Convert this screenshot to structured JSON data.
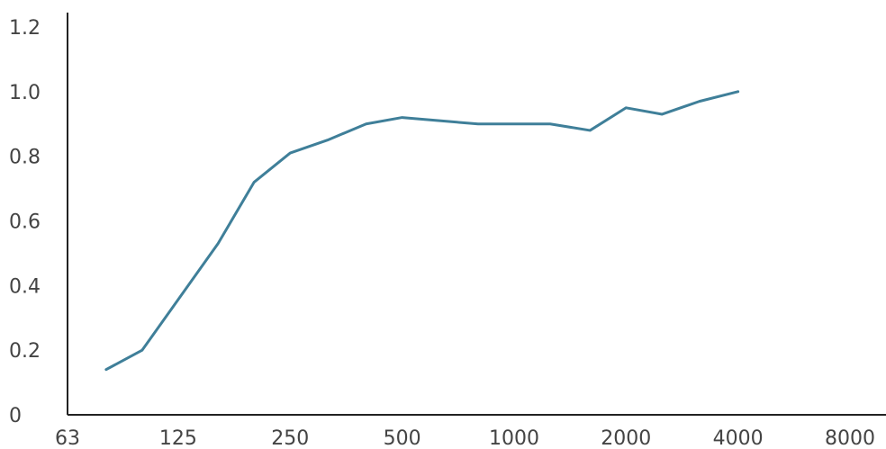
{
  "chart_data": {
    "type": "line",
    "title": "",
    "xlabel": "",
    "ylabel": "",
    "x_scale": "log2",
    "x_ticks": [
      63,
      125,
      250,
      500,
      1000,
      2000,
      4000,
      8000
    ],
    "x_tick_labels": [
      "63",
      "125",
      "250",
      "500",
      "1000",
      "2000",
      "4000",
      "8000"
    ],
    "y_ticks": [
      0,
      0.2,
      0.4,
      0.6,
      0.8,
      1.0,
      1.2
    ],
    "y_tick_labels": [
      "0",
      "0.2",
      "0.4",
      "0.6",
      "0.8",
      "1.0",
      "1.2"
    ],
    "xlim": [
      63,
      8000
    ],
    "ylim": [
      0,
      1.2
    ],
    "grid": false,
    "legend": "none",
    "series": [
      {
        "color": "#3f7f99",
        "points": [
          {
            "x": 80,
            "y": 0.14
          },
          {
            "x": 100,
            "y": 0.2
          },
          {
            "x": 160,
            "y": 0.53
          },
          {
            "x": 200,
            "y": 0.72
          },
          {
            "x": 250,
            "y": 0.81
          },
          {
            "x": 315,
            "y": 0.85
          },
          {
            "x": 400,
            "y": 0.9
          },
          {
            "x": 500,
            "y": 0.92
          },
          {
            "x": 630,
            "y": 0.91
          },
          {
            "x": 800,
            "y": 0.9
          },
          {
            "x": 1000,
            "y": 0.9
          },
          {
            "x": 1250,
            "y": 0.9
          },
          {
            "x": 1600,
            "y": 0.88
          },
          {
            "x": 2000,
            "y": 0.95
          },
          {
            "x": 2500,
            "y": 0.93
          },
          {
            "x": 3150,
            "y": 0.97
          },
          {
            "x": 4000,
            "y": 1.0
          }
        ]
      }
    ]
  }
}
